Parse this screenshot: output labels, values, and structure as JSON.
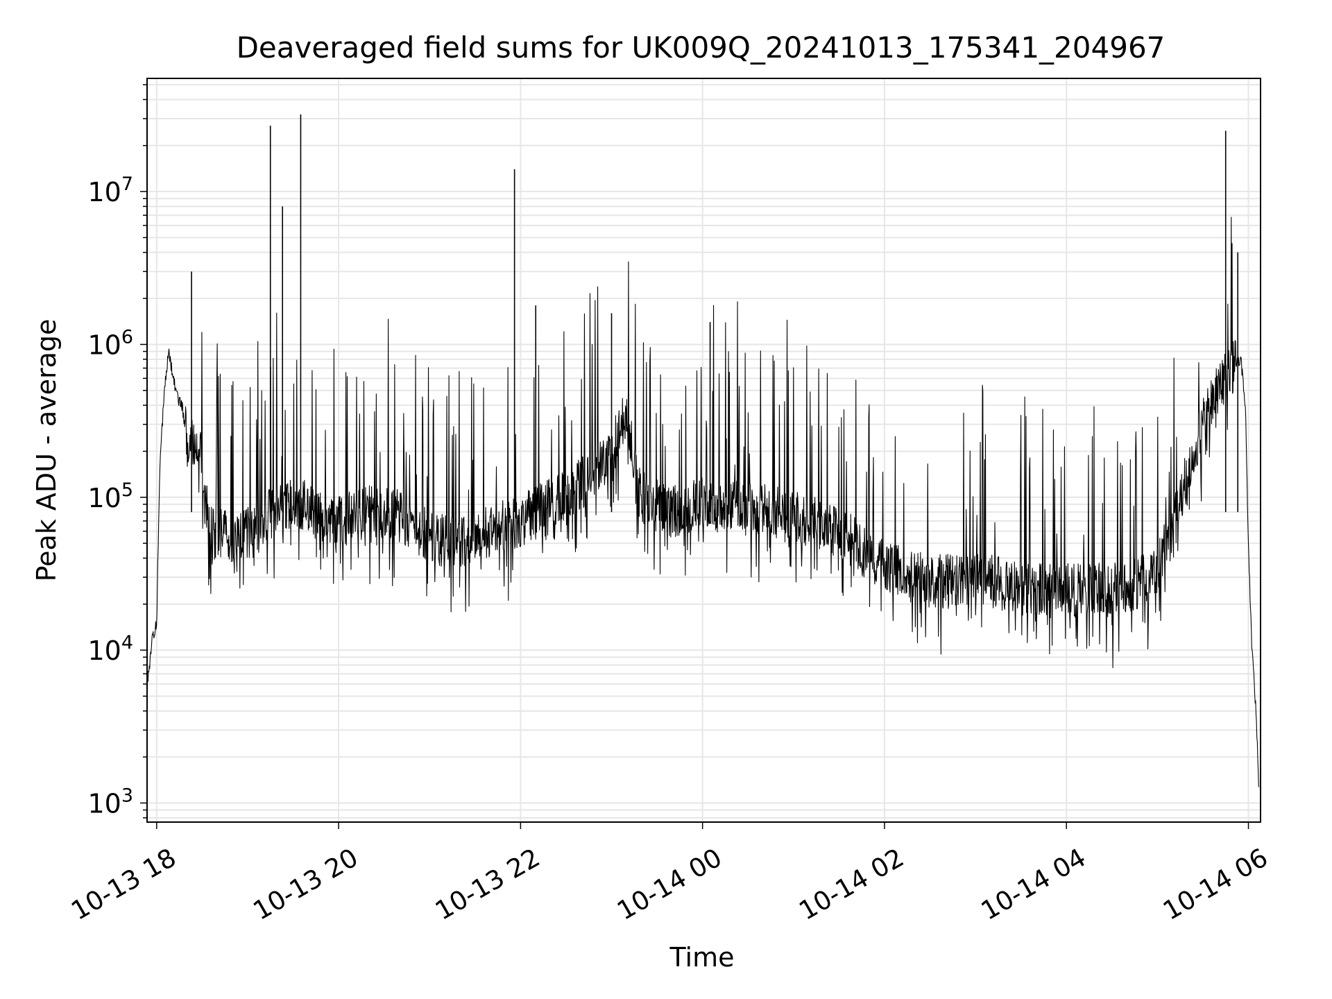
{
  "chart_data": {
    "type": "line",
    "title": "Deaveraged field sums for UK009Q_20241013_175341_204967",
    "xlabel": "Time",
    "ylabel": "Peak ADU - average",
    "yscale": "log",
    "grid": true,
    "legend": "none",
    "xlim": [
      "2024-10-13T17:53:41",
      "2024-10-14T06:08:00"
    ],
    "ylim": [
      750,
      55000000
    ],
    "x_ticks": [
      {
        "value": "2024-10-13T18:00",
        "label": "10-13 18"
      },
      {
        "value": "2024-10-13T20:00",
        "label": "10-13 20"
      },
      {
        "value": "2024-10-13T22:00",
        "label": "10-13 22"
      },
      {
        "value": "2024-10-14T00:00",
        "label": "10-14 00"
      },
      {
        "value": "2024-10-14T02:00",
        "label": "10-14 02"
      },
      {
        "value": "2024-10-14T04:00",
        "label": "10-14 04"
      },
      {
        "value": "2024-10-14T06:00",
        "label": "10-14 06"
      }
    ],
    "y_ticks": [
      {
        "value": 1000,
        "base": "10",
        "exp": "3"
      },
      {
        "value": 10000,
        "base": "10",
        "exp": "4"
      },
      {
        "value": 100000,
        "base": "10",
        "exp": "5"
      },
      {
        "value": 1000000,
        "base": "10",
        "exp": "6"
      },
      {
        "value": 10000000,
        "base": "10",
        "exp": "7"
      }
    ],
    "line_color": "#000000",
    "grid_color": "#e6e6e6",
    "series": [
      {
        "x": [
          "2024-10-13T17:54",
          "2024-10-13T17:57",
          "2024-10-13T18:00",
          "2024-10-13T18:02",
          "2024-10-13T18:05",
          "2024-10-13T18:08",
          "2024-10-13T18:11",
          "2024-10-13T18:14",
          "2024-10-13T18:17",
          "2024-10-13T18:20",
          "2024-10-13T18:25",
          "2024-10-13T18:30",
          "2024-10-13T18:35",
          "2024-10-13T18:40",
          "2024-10-13T18:45",
          "2024-10-13T18:50",
          "2024-10-13T19:00",
          "2024-10-13T19:10",
          "2024-10-13T19:20",
          "2024-10-13T19:35",
          "2024-10-13T19:50",
          "2024-10-13T20:00",
          "2024-10-13T20:20",
          "2024-10-13T20:40",
          "2024-10-13T21:00",
          "2024-10-13T21:20",
          "2024-10-13T21:40",
          "2024-10-13T22:00",
          "2024-10-13T22:20",
          "2024-10-13T22:40",
          "2024-10-13T23:00",
          "2024-10-13T23:10",
          "2024-10-13T23:20",
          "2024-10-13T23:40",
          "2024-10-14T00:00",
          "2024-10-14T00:30",
          "2024-10-14T01:00",
          "2024-10-14T01:30",
          "2024-10-14T02:00",
          "2024-10-14T02:30",
          "2024-10-14T03:00",
          "2024-10-14T03:30",
          "2024-10-14T04:00",
          "2024-10-14T04:30",
          "2024-10-14T04:50",
          "2024-10-14T05:00",
          "2024-10-14T05:10",
          "2024-10-14T05:20",
          "2024-10-14T05:30",
          "2024-10-14T05:40",
          "2024-10-14T05:50",
          "2024-10-14T05:55",
          "2024-10-14T05:58",
          "2024-10-14T06:00",
          "2024-10-14T06:02",
          "2024-10-14T06:05",
          "2024-10-14T06:07"
        ],
        "y": [
          6000,
          12000,
          15000,
          150000,
          500000,
          900000,
          600000,
          450000,
          380000,
          250000,
          200000,
          180000,
          60000,
          55000,
          60000,
          55000,
          58000,
          70000,
          85000,
          90000,
          75000,
          70000,
          80000,
          75000,
          55000,
          50000,
          60000,
          70000,
          90000,
          120000,
          200000,
          350000,
          100000,
          80000,
          90000,
          85000,
          75000,
          60000,
          35000,
          28000,
          30000,
          25000,
          25000,
          25000,
          28000,
          35000,
          60000,
          150000,
          300000,
          500000,
          700000,
          800000,
          400000,
          50000,
          12000,
          4000,
          1200
        ]
      }
    ],
    "spikes": [
      {
        "x": "2024-10-13T18:23",
        "y": 3000000
      },
      {
        "x": "2024-10-13T19:15",
        "y": 27000000
      },
      {
        "x": "2024-10-13T19:23",
        "y": 8000000
      },
      {
        "x": "2024-10-13T19:35",
        "y": 32000000
      },
      {
        "x": "2024-10-13T21:56",
        "y": 14000000
      },
      {
        "x": "2024-10-13T22:10",
        "y": 1800000
      },
      {
        "x": "2024-10-13T23:00",
        "y": 1600000
      },
      {
        "x": "2024-10-14T00:05",
        "y": 1400000
      },
      {
        "x": "2024-10-14T05:45",
        "y": 25000000
      },
      {
        "x": "2024-10-14T05:53",
        "y": 4000000
      }
    ]
  }
}
